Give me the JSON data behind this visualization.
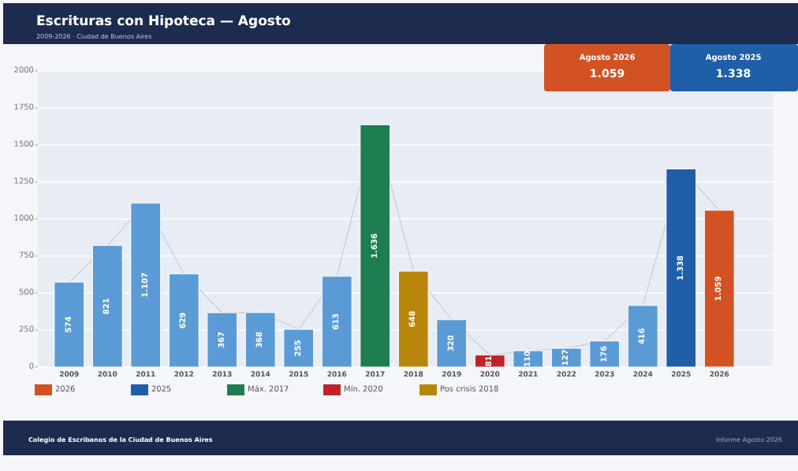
{
  "chart_data": {
    "type": "bar",
    "title": "Escrituras con Hipoteca — Agosto",
    "subtitle": "2009-2026 · Ciudad de Buenos Aires",
    "categories": [
      "2009",
      "2010",
      "2011",
      "2012",
      "2013",
      "2014",
      "2015",
      "2016",
      "2017",
      "2018",
      "2019",
      "2020",
      "2021",
      "2022",
      "2023",
      "2024",
      "2025",
      "2026"
    ],
    "series": [
      {
        "color": "#5b9bd5",
        "values": [
          574,
          821,
          1107,
          629,
          367,
          368,
          255,
          613,
          null,
          null,
          320,
          null,
          110,
          127,
          176,
          416,
          null,
          null
        ],
        "value_labels": [
          "574",
          "821",
          "1.107",
          "629",
          "367",
          "368",
          "255",
          "613",
          null,
          null,
          "320",
          null,
          "110",
          "127",
          "176",
          "416",
          null,
          null
        ]
      },
      {
        "name": "2026",
        "color": "#d35224",
        "values": [
          null,
          null,
          null,
          null,
          null,
          null,
          null,
          null,
          null,
          null,
          null,
          null,
          null,
          null,
          null,
          null,
          null,
          1059
        ],
        "value_labels": [
          null,
          null,
          null,
          null,
          null,
          null,
          null,
          null,
          null,
          null,
          null,
          null,
          null,
          null,
          null,
          null,
          null,
          "1.059"
        ]
      },
      {
        "name": "2025",
        "color": "#1f5fa8",
        "values": [
          null,
          null,
          null,
          null,
          null,
          null,
          null,
          null,
          null,
          null,
          null,
          null,
          null,
          null,
          null,
          null,
          1338,
          null
        ],
        "value_labels": [
          null,
          null,
          null,
          null,
          null,
          null,
          null,
          null,
          null,
          null,
          null,
          null,
          null,
          null,
          null,
          null,
          "1.338",
          null
        ]
      },
      {
        "name": "Máx. 2017",
        "color": "#1e7d50",
        "values": [
          null,
          null,
          null,
          null,
          null,
          null,
          null,
          null,
          1636,
          null,
          null,
          null,
          null,
          null,
          null,
          null,
          null,
          null
        ],
        "value_labels": [
          null,
          null,
          null,
          null,
          null,
          null,
          null,
          null,
          "1.636",
          null,
          null,
          null,
          null,
          null,
          null,
          null,
          null,
          null
        ]
      },
      {
        "name": "Mín. 2020",
        "color": "#c0222a",
        "values": [
          null,
          null,
          null,
          null,
          null,
          null,
          null,
          null,
          null,
          null,
          null,
          81,
          null,
          null,
          null,
          null,
          null,
          null
        ],
        "value_labels": [
          null,
          null,
          null,
          null,
          null,
          null,
          null,
          null,
          null,
          null,
          null,
          "81",
          null,
          null,
          null,
          null,
          null,
          null
        ]
      },
      {
        "name": "Pos crisis 2018",
        "color": "#b8860b",
        "values": [
          null,
          null,
          null,
          null,
          null,
          null,
          null,
          null,
          null,
          648,
          null,
          null,
          null,
          null,
          null,
          null,
          null,
          null
        ],
        "value_labels": [
          null,
          null,
          null,
          null,
          null,
          null,
          null,
          null,
          null,
          "648",
          null,
          null,
          null,
          null,
          null,
          null,
          null,
          null
        ]
      },
      {
        "type": "line",
        "color": "#c8ccd6",
        "values": [
          574,
          821,
          1107,
          629,
          367,
          368,
          255,
          613,
          1636,
          648,
          320,
          81,
          110,
          127,
          176,
          416,
          1338,
          1059
        ]
      }
    ],
    "ylim": [
      0,
      2000
    ],
    "yticks": [
      0,
      250,
      500,
      750,
      1000,
      1250,
      1500,
      1750,
      2000
    ],
    "grid": "y",
    "legend": "bottom left",
    "marker": "none",
    "annotations": [
      "Agosto 2026",
      "1.059",
      "Agosto 2025",
      "1.338",
      "Colegio de Escribanos de la Ciudad de Buenos Aires",
      "Informe Agosto 2026"
    ]
  }
}
